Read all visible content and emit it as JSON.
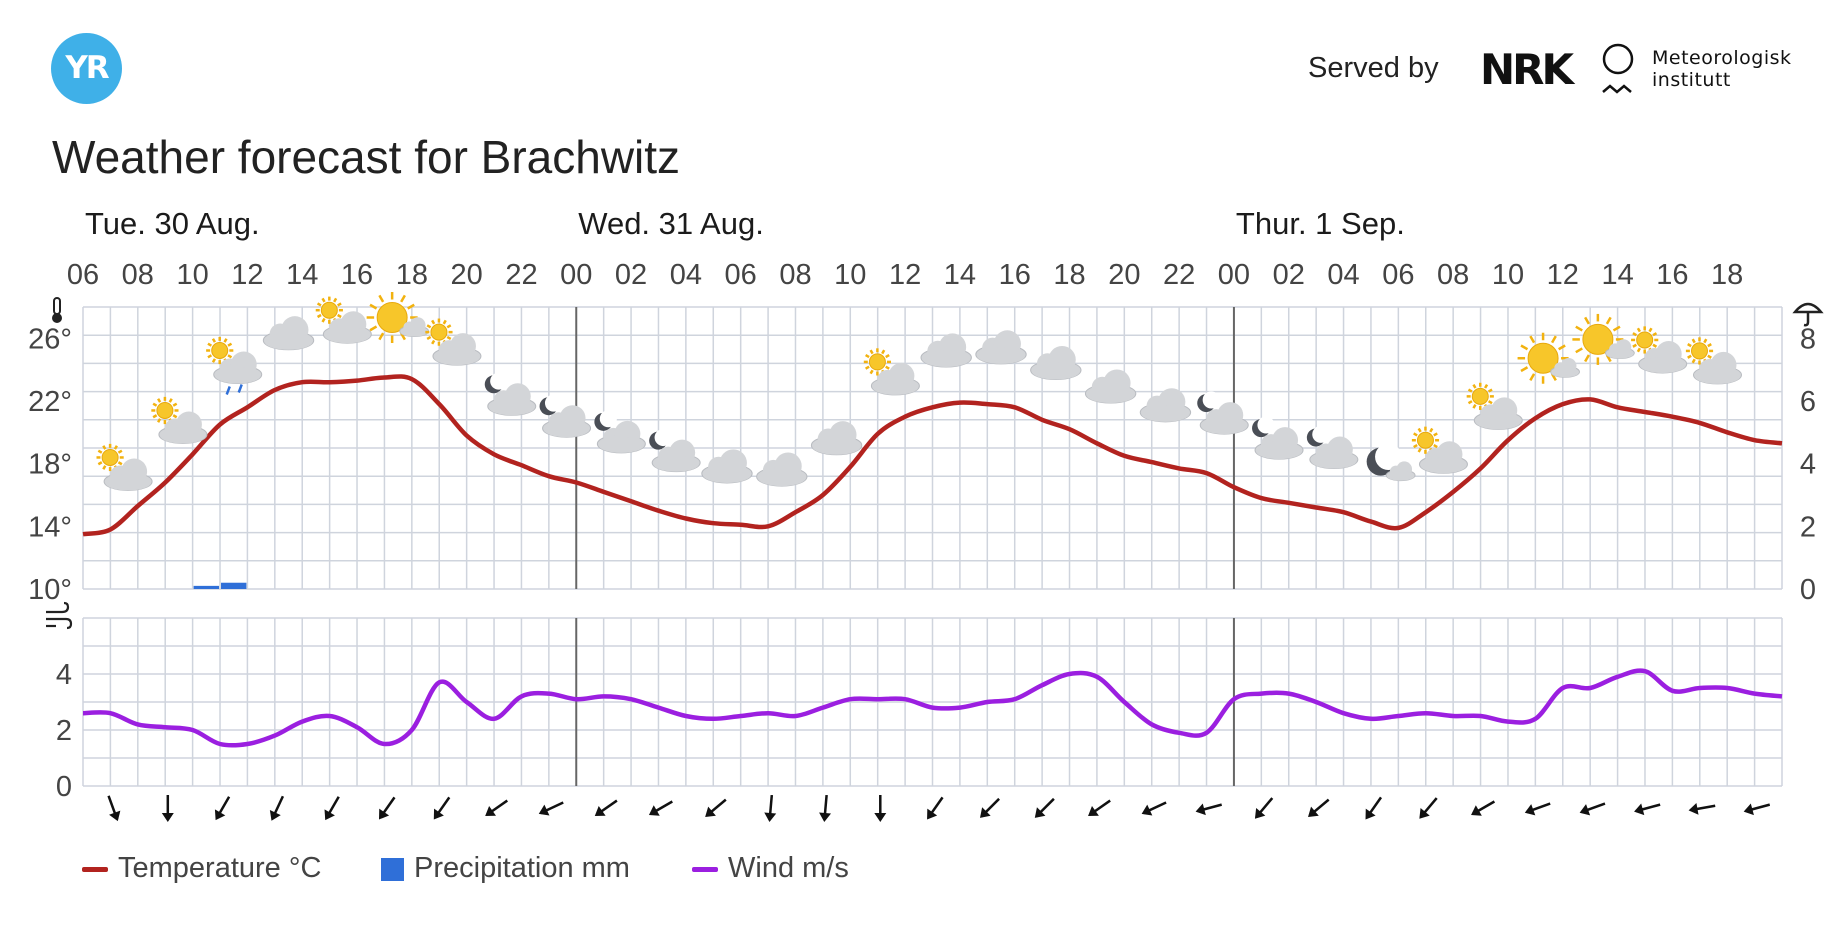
{
  "header": {
    "logo_text": "YR",
    "served_by": "Served by",
    "nrk_logo": "NRK",
    "met_name_line1": "Meteorologisk",
    "met_name_line2": "institutt"
  },
  "title": "Weather forecast for Brachwitz",
  "colors": {
    "temperature": "#b2231f",
    "precipitation": "#2f6fd8",
    "wind": "#9b1fe0",
    "grid": "#cfd4dd",
    "day_divider": "#666666",
    "yr_blue": "#3fb0e8"
  },
  "chart_data": {
    "type": "line",
    "days": [
      {
        "label": "Tue. 30 Aug.",
        "start_hour_index": 0
      },
      {
        "label": "Wed. 31 Aug.",
        "start_hour_index": 18
      },
      {
        "label": "Thur. 1 Sep.",
        "start_hour_index": 42
      }
    ],
    "time_ticks": [
      "06",
      "08",
      "10",
      "12",
      "14",
      "16",
      "18",
      "20",
      "22",
      "00",
      "02",
      "04",
      "06",
      "08",
      "10",
      "12",
      "14",
      "16",
      "18",
      "20",
      "22",
      "00",
      "02",
      "04",
      "06",
      "08",
      "10",
      "12",
      "14",
      "16",
      "18"
    ],
    "hours": [
      "06",
      "07",
      "08",
      "09",
      "10",
      "11",
      "12",
      "13",
      "14",
      "15",
      "16",
      "17",
      "18",
      "19",
      "20",
      "21",
      "22",
      "23",
      "00",
      "01",
      "02",
      "03",
      "04",
      "05",
      "06",
      "07",
      "08",
      "09",
      "10",
      "11",
      "12",
      "13",
      "14",
      "15",
      "16",
      "17",
      "18",
      "19",
      "20",
      "21",
      "22",
      "23",
      "00",
      "01",
      "02",
      "03",
      "04",
      "05",
      "06",
      "07",
      "08",
      "09",
      "10",
      "11",
      "12",
      "13",
      "14",
      "15",
      "16",
      "17",
      "18",
      "19"
    ],
    "temperature_axis": {
      "ticks": [
        "10°",
        "14°",
        "18°",
        "22°",
        "26°"
      ],
      "ylim": [
        10,
        28
      ]
    },
    "precipitation_axis": {
      "ticks": [
        "0",
        "2",
        "4",
        "6",
        "8"
      ],
      "ylim": [
        0,
        9
      ]
    },
    "wind_axis": {
      "ticks": [
        "0",
        "2",
        "4"
      ],
      "ylim": [
        0,
        6
      ]
    },
    "series": [
      {
        "name": "Temperature °C",
        "unit": "°C",
        "values": [
          13.5,
          13.8,
          15.3,
          16.8,
          18.6,
          20.5,
          21.6,
          22.7,
          23.2,
          23.2,
          23.3,
          23.5,
          23.4,
          21.8,
          19.8,
          18.6,
          17.9,
          17.2,
          16.8,
          16.2,
          15.6,
          15.0,
          14.5,
          14.2,
          14.1,
          14.0,
          14.9,
          16.0,
          17.8,
          19.9,
          21.0,
          21.6,
          21.9,
          21.8,
          21.6,
          20.8,
          20.2,
          19.3,
          18.5,
          18.1,
          17.7,
          17.4,
          16.5,
          15.8,
          15.5,
          15.2,
          14.9,
          14.3,
          13.9,
          14.9,
          16.2,
          17.7,
          19.5,
          20.9,
          21.8,
          22.1,
          21.6,
          21.3,
          21.0,
          20.6,
          20.0,
          19.5
        ]
      },
      {
        "name": "Precipitation mm",
        "unit": "mm",
        "values": [
          0,
          0,
          0,
          0,
          0.1,
          0.2,
          0,
          0,
          0,
          0,
          0,
          0,
          0,
          0,
          0,
          0,
          0,
          0,
          0,
          0,
          0,
          0,
          0,
          0,
          0,
          0,
          0,
          0,
          0,
          0,
          0,
          0,
          0,
          0,
          0,
          0,
          0,
          0,
          0,
          0,
          0,
          0,
          0,
          0,
          0,
          0,
          0,
          0,
          0,
          0,
          0,
          0,
          0,
          0,
          0,
          0,
          0,
          0,
          0,
          0,
          0,
          0
        ]
      },
      {
        "name": "Wind m/s",
        "unit": "m/s",
        "values": [
          2.6,
          2.6,
          2.2,
          2.1,
          2.0,
          1.5,
          1.5,
          1.8,
          2.3,
          2.5,
          2.1,
          1.5,
          2.0,
          3.7,
          3.0,
          2.4,
          3.2,
          3.3,
          3.1,
          3.2,
          3.1,
          2.8,
          2.5,
          2.4,
          2.5,
          2.6,
          2.5,
          2.8,
          3.1,
          3.1,
          3.1,
          2.8,
          2.8,
          3.0,
          3.1,
          3.6,
          4.0,
          3.9,
          3.0,
          2.2,
          1.9,
          1.9,
          3.1,
          3.3,
          3.3,
          3.0,
          2.6,
          2.4,
          2.5,
          2.6,
          2.5,
          2.5,
          2.3,
          2.4,
          3.5,
          3.5,
          3.9,
          4.1,
          3.4,
          3.5,
          3.5,
          3.3
        ]
      }
    ],
    "weather_icons": [
      {
        "hour_index": 1,
        "icon": "partly-cloudy-day-icon"
      },
      {
        "hour_index": 3,
        "icon": "partly-cloudy-day-icon"
      },
      {
        "hour_index": 5,
        "icon": "light-rain-showers-icon"
      },
      {
        "hour_index": 7,
        "icon": "cloudy-icon"
      },
      {
        "hour_index": 9,
        "icon": "partly-cloudy-day-icon"
      },
      {
        "hour_index": 11,
        "icon": "fair-day-icon"
      },
      {
        "hour_index": 13,
        "icon": "partly-cloudy-day-icon"
      },
      {
        "hour_index": 15,
        "icon": "partly-cloudy-night-icon"
      },
      {
        "hour_index": 17,
        "icon": "partly-cloudy-night-icon"
      },
      {
        "hour_index": 19,
        "icon": "partly-cloudy-night-icon"
      },
      {
        "hour_index": 21,
        "icon": "partly-cloudy-night-icon"
      },
      {
        "hour_index": 23,
        "icon": "cloudy-icon"
      },
      {
        "hour_index": 25,
        "icon": "cloudy-icon"
      },
      {
        "hour_index": 27,
        "icon": "cloudy-icon"
      },
      {
        "hour_index": 29,
        "icon": "partly-cloudy-day-icon"
      },
      {
        "hour_index": 31,
        "icon": "cloudy-icon"
      },
      {
        "hour_index": 33,
        "icon": "cloudy-icon"
      },
      {
        "hour_index": 35,
        "icon": "cloudy-icon"
      },
      {
        "hour_index": 37,
        "icon": "cloudy-icon"
      },
      {
        "hour_index": 39,
        "icon": "cloudy-icon"
      },
      {
        "hour_index": 41,
        "icon": "partly-cloudy-night-icon"
      },
      {
        "hour_index": 43,
        "icon": "partly-cloudy-night-icon"
      },
      {
        "hour_index": 45,
        "icon": "partly-cloudy-night-icon"
      },
      {
        "hour_index": 47,
        "icon": "fair-night-icon"
      },
      {
        "hour_index": 49,
        "icon": "partly-cloudy-day-icon"
      },
      {
        "hour_index": 51,
        "icon": "partly-cloudy-day-icon"
      },
      {
        "hour_index": 53,
        "icon": "fair-day-icon"
      },
      {
        "hour_index": 55,
        "icon": "fair-day-icon"
      },
      {
        "hour_index": 57,
        "icon": "partly-cloudy-day-icon"
      },
      {
        "hour_index": 59,
        "icon": "partly-cloudy-day-icon"
      }
    ],
    "wind_directions_deg": [
      -20,
      0,
      30,
      25,
      30,
      35,
      35,
      55,
      65,
      55,
      60,
      50,
      5,
      5,
      0,
      35,
      45,
      45,
      55,
      65,
      75,
      40,
      50,
      35,
      40,
      60,
      70,
      70,
      75,
      80,
      75
    ],
    "grid": true,
    "legend_position": "bottom-left"
  },
  "legend": {
    "temperature": "Temperature °C",
    "precipitation": "Precipitation mm",
    "wind": "Wind m/s"
  }
}
